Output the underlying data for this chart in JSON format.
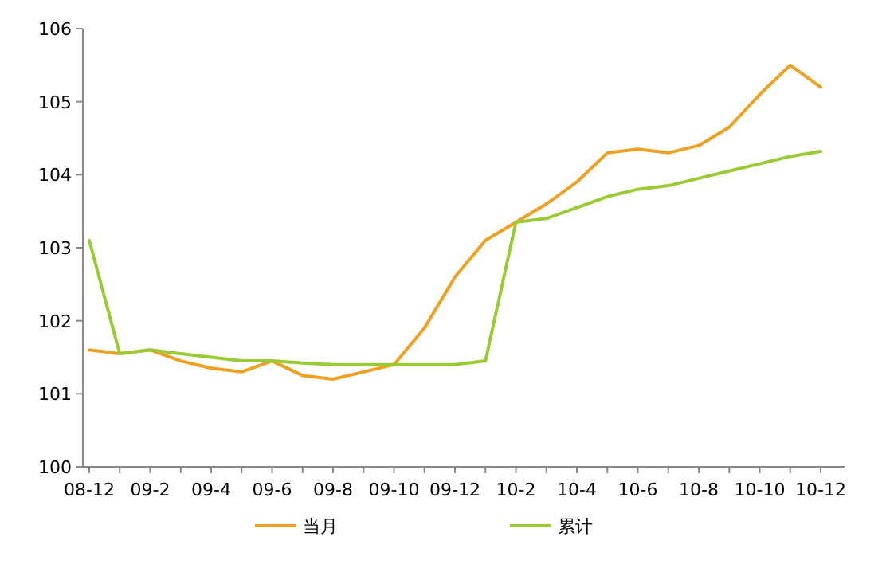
{
  "chart_data": {
    "type": "line",
    "categories": [
      "08-12",
      null,
      "09-2",
      null,
      "09-4",
      null,
      "09-6",
      null,
      "09-8",
      null,
      "09-10",
      null,
      "09-12",
      null,
      "10-2",
      null,
      "10-4",
      null,
      "10-6",
      null,
      "10-8",
      null,
      "10-10",
      null,
      "10-12"
    ],
    "series": [
      {
        "name": "当月",
        "color": "#f0a020",
        "values": [
          101.6,
          101.55,
          101.6,
          101.45,
          101.35,
          101.3,
          101.45,
          101.25,
          101.2,
          101.3,
          101.4,
          101.9,
          102.6,
          103.1,
          103.35,
          103.6,
          103.9,
          104.3,
          104.35,
          104.3,
          104.4,
          104.65,
          105.1,
          105.5,
          105.2
        ]
      },
      {
        "name": "累计",
        "color": "#99cc33",
        "values": [
          103.1,
          101.55,
          101.6,
          101.55,
          101.5,
          101.45,
          101.45,
          101.42,
          101.4,
          101.4,
          101.4,
          101.4,
          101.4,
          101.45,
          103.35,
          103.4,
          103.55,
          103.7,
          103.8,
          103.85,
          103.95,
          104.05,
          104.15,
          104.25,
          104.32
        ]
      }
    ],
    "ylim": [
      100,
      106
    ],
    "yticks": [
      100,
      101,
      102,
      103,
      104,
      105,
      106
    ],
    "legend": "bottom"
  }
}
